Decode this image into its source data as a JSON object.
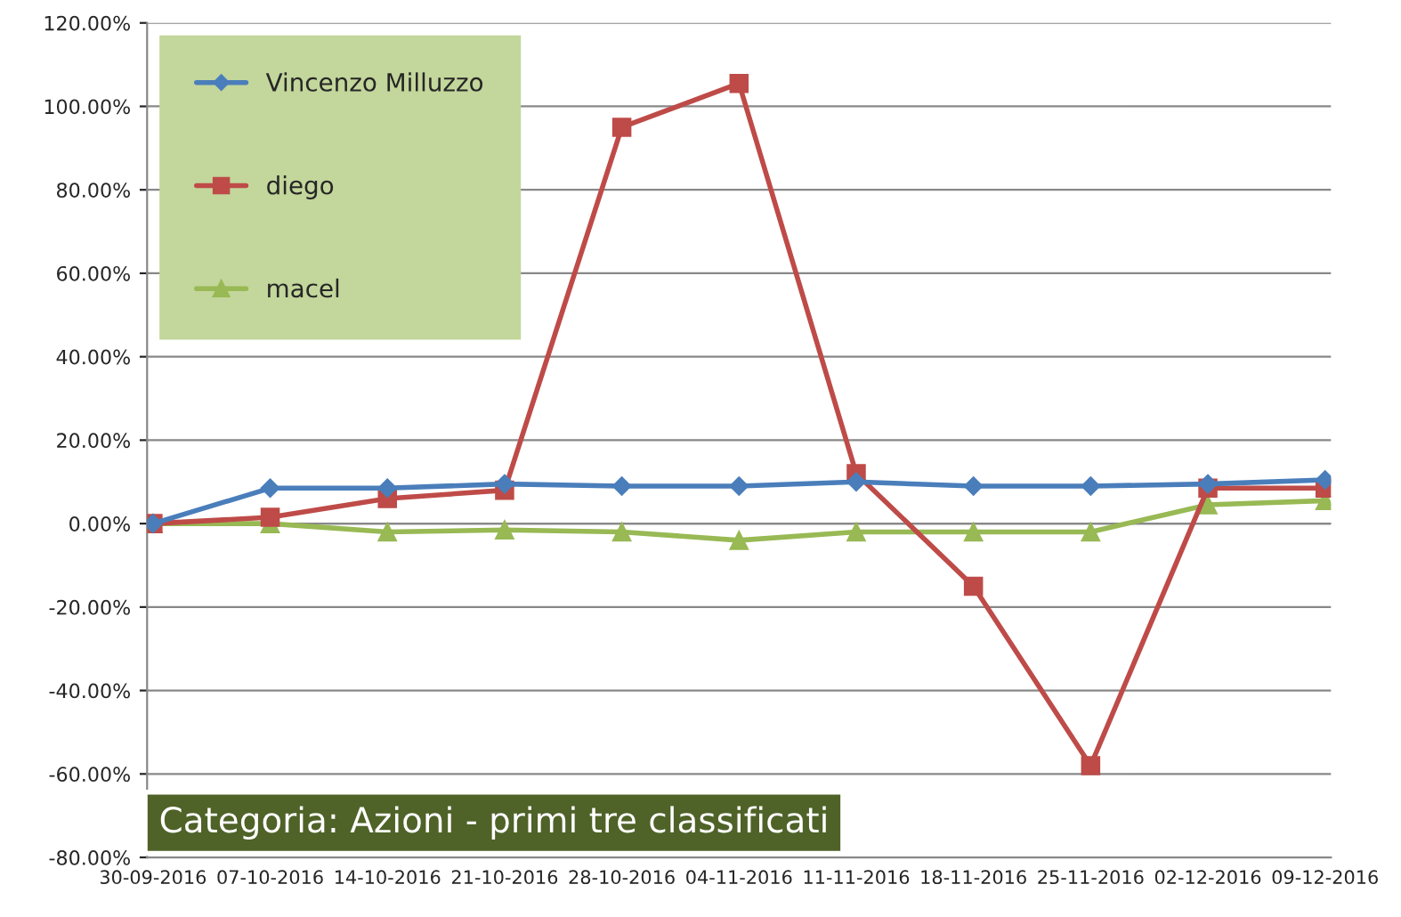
{
  "chart_data": {
    "type": "line",
    "categories": [
      "30-09-2016",
      "07-10-2016",
      "14-10-2016",
      "21-10-2016",
      "28-10-2016",
      "04-11-2016",
      "11-11-2016",
      "18-11-2016",
      "25-11-2016",
      "02-12-2016",
      "09-12-2016"
    ],
    "series": [
      {
        "name": "Vincenzo Milluzzo",
        "color": "#4a7ebb",
        "marker": "diamond",
        "values": [
          0,
          8.5,
          8.5,
          9.5,
          9,
          9,
          10,
          9,
          9,
          9.5,
          10.5
        ]
      },
      {
        "name": "diego",
        "color": "#be4b48",
        "marker": "square",
        "values": [
          0,
          1.5,
          6,
          8,
          95,
          105.5,
          12,
          -15,
          -58,
          8.5,
          8.5
        ]
      },
      {
        "name": "macel",
        "color": "#98b954",
        "marker": "triangle",
        "values": [
          0,
          0,
          -2,
          -1.5,
          -2,
          -4,
          -2,
          -2,
          -2,
          4.5,
          5.5
        ]
      }
    ],
    "ylim": [
      -80,
      120
    ],
    "yticks": [
      {
        "value": -80,
        "label": "-80.00%"
      },
      {
        "value": -60,
        "label": "-60.00%"
      },
      {
        "value": -40,
        "label": "-40.00%"
      },
      {
        "value": -20,
        "label": "-20.00%"
      },
      {
        "value": 0,
        "label": "0.00%"
      },
      {
        "value": 20,
        "label": "20.00%"
      },
      {
        "value": 40,
        "label": "40.00%"
      },
      {
        "value": 60,
        "label": "60.00%"
      },
      {
        "value": 80,
        "label": "80.00%"
      },
      {
        "value": 100,
        "label": "100.00%"
      },
      {
        "value": 120,
        "label": "120.00%"
      }
    ],
    "grid": "y",
    "legend": "top left",
    "line_style": "solid",
    "annotations": [
      "Categoria: Azioni - primi tre classificati"
    ]
  }
}
